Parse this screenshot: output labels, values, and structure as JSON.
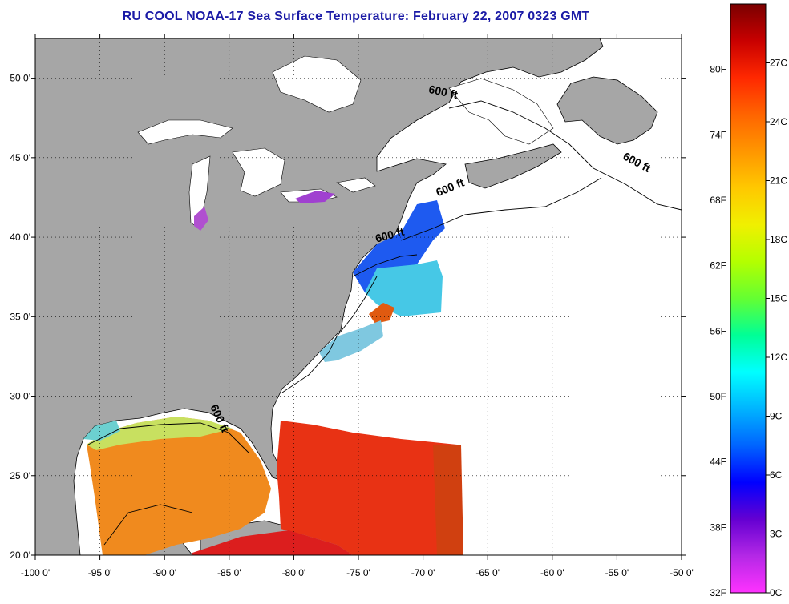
{
  "title": "RU COOL  NOAA-17  Sea Surface Temperature:  February 22, 2007 0323 GMT",
  "map": {
    "lon_range": [
      -100,
      -50
    ],
    "lat_range": [
      20,
      52.5
    ],
    "lon_ticks": [
      -100,
      -95,
      -90,
      -85,
      -80,
      -75,
      -70,
      -65,
      -60,
      -55,
      -50
    ],
    "lon_tick_labels": [
      "-100 0'",
      "-95 0'",
      "-90 0'",
      "-85 0'",
      "-80 0'",
      "-75 0'",
      "-70 0'",
      "-65 0'",
      "-60 0'",
      "-55 0'",
      "-50 0'"
    ],
    "lat_ticks": [
      20,
      25,
      30,
      35,
      40,
      45,
      50
    ],
    "lat_tick_labels": [
      "20 0'",
      "25 0'",
      "30 0'",
      "35 0'",
      "40 0'",
      "45 0'",
      "50 0'"
    ],
    "grid": "dotted",
    "colors": {
      "land": "#a6a6a6",
      "no_data": "#ffffff",
      "coast": "#000000"
    }
  },
  "isobath_labels": [
    {
      "text": "600 ft",
      "lon": -68.5,
      "lat": 48.9,
      "rotate": 12
    },
    {
      "text": "600 ft",
      "lon": -53.6,
      "lat": 44.5,
      "rotate": 28
    },
    {
      "text": "600 ft",
      "lon": -67.8,
      "lat": 42.9,
      "rotate": -22
    },
    {
      "text": "600 ft",
      "lon": -72.5,
      "lat": 39.9,
      "rotate": -15
    },
    {
      "text": "600 ft",
      "lon": -86.0,
      "lat": 28.5,
      "rotate": 65
    }
  ],
  "colorbar": {
    "fahrenheit_labels": [
      "80F",
      "74F",
      "68F",
      "62F",
      "56F",
      "50F",
      "44F",
      "38F",
      "32F"
    ],
    "celsius_labels": [
      "27C",
      "24C",
      "21C",
      "18C",
      "15C",
      "12C",
      "9C",
      "6C",
      "3C",
      "0C"
    ],
    "stops": [
      "#7a0000",
      "#c80000",
      "#ff2800",
      "#ff6400",
      "#ff9600",
      "#ffc800",
      "#f0f000",
      "#b4ff00",
      "#64ff32",
      "#00ff96",
      "#00ffff",
      "#00b4ff",
      "#0064ff",
      "#0000ff",
      "#6400d2",
      "#b428e6",
      "#ff32ff"
    ]
  }
}
